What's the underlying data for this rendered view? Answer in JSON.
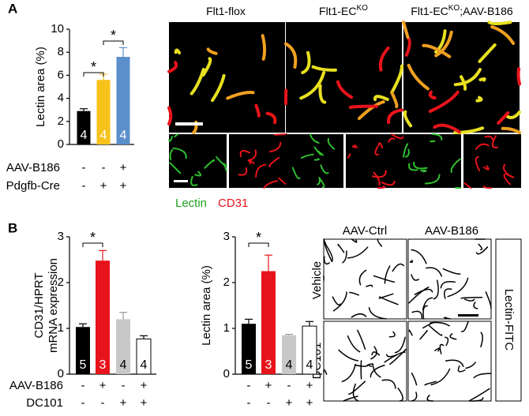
{
  "panel_labels": [
    "A",
    "B"
  ],
  "top_images": {
    "titles": [
      [
        "Flt1-flox"
      ],
      [
        "Flt1-EC",
        "KO"
      ],
      [
        "Flt1-EC",
        "KO",
        ";AAV-B186"
      ]
    ],
    "channels": [
      "Lectin",
      "CD31"
    ]
  },
  "bottom_images": {
    "columns": [
      "AAV-Ctrl",
      "AAV-B186"
    ],
    "rows": [
      "Vehicle",
      "DC101"
    ],
    "stain": "Lectin-FITC"
  },
  "chart_data": [
    {
      "type": "bar",
      "ylabel": [
        "Lectin area (%)"
      ],
      "categories": [
        null,
        null,
        null
      ],
      "values": [
        2.9,
        5.6,
        7.6
      ],
      "errors": [
        0.2,
        0.5,
        0.8
      ],
      "colors": [
        "#000000",
        "#f7c21a",
        "#5b8fcb"
      ],
      "n_labels": [
        "4",
        "4",
        "4"
      ],
      "ylim": [
        0,
        10
      ],
      "yticks": [
        0,
        2,
        4,
        6,
        8,
        10
      ],
      "annotations": [
        "*",
        "*"
      ],
      "rows": [
        {
          "name": "AAV-B186",
          "signs": [
            "-",
            "-",
            "+"
          ]
        },
        {
          "name": "Pdgfb-Cre",
          "signs": [
            "-",
            "+",
            "+"
          ]
        }
      ]
    },
    {
      "type": "bar",
      "ylabel": [
        "CD31/HPRT",
        "mRNA expression"
      ],
      "categories": [
        null,
        null,
        null,
        null
      ],
      "values": [
        1.03,
        2.48,
        1.2,
        0.77
      ],
      "errors": [
        0.07,
        0.22,
        0.15,
        0.07
      ],
      "colors": [
        "#000000",
        "#e8141b",
        "#c8c8c8",
        "#ffffff"
      ],
      "n_labels": [
        "5",
        "3",
        "4",
        "4"
      ],
      "ylim": [
        0,
        3
      ],
      "yticks": [
        0,
        1,
        2,
        3
      ],
      "annotations": [
        "*"
      ],
      "rows": [
        {
          "name": "AAV-B186",
          "signs": [
            "-",
            "+",
            "-",
            "+"
          ]
        },
        {
          "name": "DC101",
          "signs": [
            "-",
            "-",
            "+",
            "+"
          ]
        }
      ]
    },
    {
      "type": "bar",
      "ylabel": [
        "Lectin area (%)"
      ],
      "categories": [
        null,
        null,
        null,
        null
      ],
      "values": [
        1.1,
        2.25,
        0.85,
        1.05
      ],
      "errors": [
        0.1,
        0.35,
        0.02,
        0.1
      ],
      "colors": [
        "#000000",
        "#e8141b",
        "#c8c8c8",
        "#ffffff"
      ],
      "n_labels": [
        "5",
        "3",
        "4",
        "4"
      ],
      "ylim": [
        0,
        3
      ],
      "yticks": [
        0,
        1,
        2,
        3
      ],
      "annotations": [
        "*"
      ],
      "rows": [
        {
          "signs": [
            "-",
            "+",
            "-",
            "+"
          ]
        },
        {
          "signs": [
            "-",
            "-",
            "+",
            "+"
          ]
        }
      ]
    }
  ]
}
